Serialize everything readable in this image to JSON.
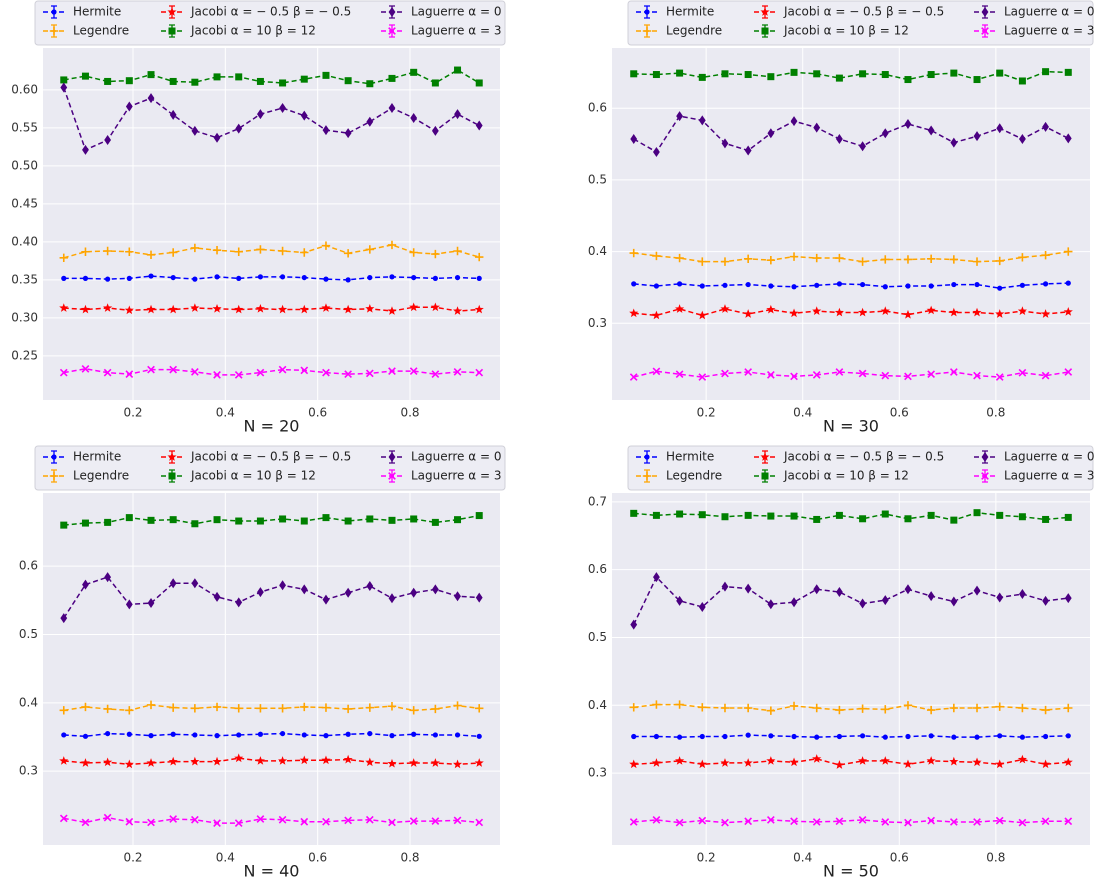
{
  "chart_data": [
    {
      "type": "line",
      "xlabel": "N = 20",
      "grid": true,
      "x": [
        0.05,
        0.097,
        0.145,
        0.192,
        0.239,
        0.287,
        0.334,
        0.382,
        0.429,
        0.476,
        0.524,
        0.571,
        0.618,
        0.666,
        0.713,
        0.761,
        0.808,
        0.855,
        0.903,
        0.95
      ],
      "xlim": [
        0.005,
        0.995
      ],
      "xticks": [
        0.2,
        0.4,
        0.6,
        0.8
      ],
      "ylim": [
        0.192,
        0.655
      ],
      "yticks": [
        0.25,
        {
          "value": 0.3,
          "label": "0.30"
        },
        0.35,
        {
          "value": 0.4,
          "label": "0.40"
        },
        0.45,
        {
          "value": 0.5,
          "label": "0.50"
        },
        0.55,
        {
          "value": 0.6,
          "label": "0.60"
        }
      ],
      "series": [
        {
          "name": "Hermite",
          "color": "#0000ff",
          "marker": "dot",
          "values": [
            0.352,
            0.352,
            0.351,
            0.352,
            0.355,
            0.353,
            0.351,
            0.354,
            0.352,
            0.354,
            0.354,
            0.353,
            0.351,
            0.35,
            0.353,
            0.354,
            0.353,
            0.352,
            0.353,
            0.352
          ]
        },
        {
          "name": "Legendre",
          "color": "#ffa500",
          "marker": "plus",
          "values": [
            0.379,
            0.387,
            0.388,
            0.387,
            0.383,
            0.386,
            0.392,
            0.389,
            0.387,
            0.39,
            0.388,
            0.386,
            0.395,
            0.385,
            0.39,
            0.396,
            0.386,
            0.384,
            0.388,
            0.38
          ]
        },
        {
          "name": "Jacobi α = − 0.5 β = − 0.5",
          "color": "#ff0000",
          "marker": "star",
          "values": [
            0.313,
            0.311,
            0.313,
            0.31,
            0.311,
            0.311,
            0.313,
            0.312,
            0.311,
            0.312,
            0.311,
            0.311,
            0.313,
            0.311,
            0.312,
            0.309,
            0.314,
            0.314,
            0.309,
            0.311
          ]
        },
        {
          "name": "Jacobi α = 10 β = 12",
          "color": "#008000",
          "marker": "square",
          "values": [
            0.613,
            0.618,
            0.611,
            0.612,
            0.62,
            0.611,
            0.61,
            0.617,
            0.617,
            0.611,
            0.609,
            0.614,
            0.619,
            0.612,
            0.608,
            0.615,
            0.623,
            0.609,
            0.626,
            0.609
          ]
        },
        {
          "name": "Laguerre α = 0",
          "color": "#4b0082",
          "marker": "diamond",
          "values": [
            0.603,
            0.521,
            0.534,
            0.578,
            0.589,
            0.567,
            0.546,
            0.537,
            0.549,
            0.568,
            0.576,
            0.566,
            0.547,
            0.543,
            0.558,
            0.576,
            0.563,
            0.546,
            0.568,
            0.553
          ]
        },
        {
          "name": "Laguerre α = 3",
          "color": "#ff00ff",
          "marker": "x",
          "values": [
            0.228,
            0.233,
            0.228,
            0.226,
            0.232,
            0.232,
            0.229,
            0.225,
            0.225,
            0.228,
            0.232,
            0.231,
            0.228,
            0.226,
            0.227,
            0.23,
            0.23,
            0.226,
            0.229,
            0.228
          ]
        }
      ]
    },
    {
      "type": "line",
      "xlabel": "N = 30",
      "grid": true,
      "x": [
        0.05,
        0.097,
        0.145,
        0.192,
        0.239,
        0.287,
        0.334,
        0.382,
        0.429,
        0.476,
        0.524,
        0.571,
        0.618,
        0.666,
        0.713,
        0.761,
        0.808,
        0.855,
        0.903,
        0.95
      ],
      "xlim": [
        0.005,
        0.995
      ],
      "xticks": [
        0.2,
        0.4,
        0.6,
        0.8
      ],
      "ylim": [
        0.193,
        0.684
      ],
      "yticks": [
        0.3,
        0.4,
        0.5,
        0.6
      ],
      "series": [
        {
          "name": "Hermite",
          "color": "#0000ff",
          "marker": "dot",
          "values": [
            0.355,
            0.352,
            0.355,
            0.352,
            0.353,
            0.354,
            0.352,
            0.351,
            0.353,
            0.355,
            0.354,
            0.351,
            0.352,
            0.352,
            0.354,
            0.354,
            0.349,
            0.353,
            0.355,
            0.356
          ]
        },
        {
          "name": "Legendre",
          "color": "#ffa500",
          "marker": "plus",
          "values": [
            0.398,
            0.394,
            0.391,
            0.386,
            0.386,
            0.39,
            0.388,
            0.393,
            0.391,
            0.391,
            0.386,
            0.389,
            0.389,
            0.39,
            0.389,
            0.386,
            0.387,
            0.392,
            0.395,
            0.4
          ]
        },
        {
          "name": "Jacobi α = − 0.5 β = − 0.5",
          "color": "#ff0000",
          "marker": "star",
          "values": [
            0.314,
            0.311,
            0.32,
            0.311,
            0.32,
            0.313,
            0.319,
            0.314,
            0.317,
            0.315,
            0.315,
            0.317,
            0.312,
            0.318,
            0.315,
            0.315,
            0.313,
            0.317,
            0.313,
            0.316
          ]
        },
        {
          "name": "Jacobi α = 10 β = 12",
          "color": "#008000",
          "marker": "square",
          "values": [
            0.648,
            0.647,
            0.649,
            0.643,
            0.648,
            0.647,
            0.644,
            0.65,
            0.648,
            0.642,
            0.648,
            0.647,
            0.64,
            0.647,
            0.649,
            0.64,
            0.649,
            0.638,
            0.651,
            0.65
          ]
        },
        {
          "name": "Laguerre α = 0",
          "color": "#4b0082",
          "marker": "diamond",
          "values": [
            0.557,
            0.539,
            0.589,
            0.583,
            0.551,
            0.541,
            0.565,
            0.582,
            0.573,
            0.557,
            0.547,
            0.565,
            0.578,
            0.569,
            0.552,
            0.561,
            0.572,
            0.557,
            0.574,
            0.558
          ]
        },
        {
          "name": "Laguerre α = 3",
          "color": "#ff00ff",
          "marker": "x",
          "values": [
            0.225,
            0.233,
            0.229,
            0.225,
            0.23,
            0.232,
            0.228,
            0.226,
            0.228,
            0.232,
            0.23,
            0.227,
            0.226,
            0.229,
            0.232,
            0.227,
            0.225,
            0.231,
            0.227,
            0.232
          ]
        }
      ]
    },
    {
      "type": "line",
      "xlabel": "N = 40",
      "grid": true,
      "x": [
        0.05,
        0.097,
        0.145,
        0.192,
        0.239,
        0.287,
        0.334,
        0.382,
        0.429,
        0.476,
        0.524,
        0.571,
        0.618,
        0.666,
        0.713,
        0.761,
        0.808,
        0.855,
        0.903,
        0.95
      ],
      "xlim": [
        0.005,
        0.995
      ],
      "xticks": [
        0.2,
        0.4,
        0.6,
        0.8
      ],
      "ylim": [
        0.192,
        0.707
      ],
      "yticks": [
        0.3,
        0.4,
        0.5,
        0.6
      ],
      "series": [
        {
          "name": "Hermite",
          "color": "#0000ff",
          "marker": "dot",
          "values": [
            0.353,
            0.351,
            0.355,
            0.354,
            0.352,
            0.354,
            0.353,
            0.352,
            0.353,
            0.354,
            0.355,
            0.353,
            0.352,
            0.354,
            0.355,
            0.352,
            0.354,
            0.353,
            0.353,
            0.351
          ]
        },
        {
          "name": "Legendre",
          "color": "#ffa500",
          "marker": "plus",
          "values": [
            0.389,
            0.394,
            0.391,
            0.389,
            0.397,
            0.393,
            0.392,
            0.394,
            0.392,
            0.392,
            0.392,
            0.394,
            0.393,
            0.391,
            0.393,
            0.395,
            0.389,
            0.391,
            0.396,
            0.392
          ]
        },
        {
          "name": "Jacobi α = − 0.5 β = − 0.5",
          "color": "#ff0000",
          "marker": "star",
          "values": [
            0.315,
            0.312,
            0.313,
            0.31,
            0.312,
            0.314,
            0.314,
            0.314,
            0.319,
            0.315,
            0.315,
            0.316,
            0.316,
            0.317,
            0.313,
            0.311,
            0.312,
            0.312,
            0.31,
            0.312
          ]
        },
        {
          "name": "Jacobi α = 10 β = 12",
          "color": "#008000",
          "marker": "square",
          "values": [
            0.66,
            0.663,
            0.664,
            0.671,
            0.667,
            0.668,
            0.662,
            0.668,
            0.666,
            0.666,
            0.669,
            0.666,
            0.671,
            0.666,
            0.669,
            0.667,
            0.669,
            0.664,
            0.668,
            0.674
          ]
        },
        {
          "name": "Laguerre α = 0",
          "color": "#4b0082",
          "marker": "diamond",
          "values": [
            0.524,
            0.573,
            0.584,
            0.544,
            0.546,
            0.575,
            0.575,
            0.555,
            0.547,
            0.562,
            0.572,
            0.566,
            0.551,
            0.561,
            0.571,
            0.553,
            0.561,
            0.566,
            0.556,
            0.554
          ]
        },
        {
          "name": "Laguerre α = 3",
          "color": "#ff00ff",
          "marker": "x",
          "values": [
            0.231,
            0.225,
            0.232,
            0.226,
            0.225,
            0.23,
            0.229,
            0.224,
            0.224,
            0.23,
            0.229,
            0.226,
            0.226,
            0.228,
            0.229,
            0.225,
            0.227,
            0.227,
            0.228,
            0.225
          ]
        }
      ]
    },
    {
      "type": "line",
      "xlabel": "N = 50",
      "grid": true,
      "x": [
        0.05,
        0.097,
        0.145,
        0.192,
        0.239,
        0.287,
        0.334,
        0.382,
        0.429,
        0.476,
        0.524,
        0.571,
        0.618,
        0.666,
        0.713,
        0.761,
        0.808,
        0.855,
        0.903,
        0.95
      ],
      "xlim": [
        0.005,
        0.995
      ],
      "xticks": [
        0.2,
        0.4,
        0.6,
        0.8
      ],
      "ylim": [
        0.194,
        0.713
      ],
      "yticks": [
        0.3,
        0.4,
        0.5,
        0.6,
        0.7
      ],
      "series": [
        {
          "name": "Hermite",
          "color": "#0000ff",
          "marker": "dot",
          "values": [
            0.354,
            0.354,
            0.353,
            0.354,
            0.354,
            0.356,
            0.355,
            0.354,
            0.353,
            0.354,
            0.355,
            0.353,
            0.354,
            0.355,
            0.353,
            0.353,
            0.355,
            0.353,
            0.354,
            0.355
          ]
        },
        {
          "name": "Legendre",
          "color": "#ffa500",
          "marker": "plus",
          "values": [
            0.397,
            0.401,
            0.401,
            0.397,
            0.396,
            0.396,
            0.392,
            0.399,
            0.396,
            0.393,
            0.395,
            0.394,
            0.4,
            0.393,
            0.396,
            0.396,
            0.398,
            0.396,
            0.393,
            0.396
          ]
        },
        {
          "name": "Jacobi α = − 0.5 β = − 0.5",
          "color": "#ff0000",
          "marker": "star",
          "values": [
            0.313,
            0.315,
            0.318,
            0.313,
            0.315,
            0.315,
            0.318,
            0.316,
            0.321,
            0.312,
            0.318,
            0.318,
            0.313,
            0.318,
            0.317,
            0.316,
            0.313,
            0.32,
            0.313,
            0.316
          ]
        },
        {
          "name": "Jacobi α = 10 β = 12",
          "color": "#008000",
          "marker": "square",
          "values": [
            0.683,
            0.68,
            0.682,
            0.681,
            0.678,
            0.68,
            0.679,
            0.679,
            0.674,
            0.68,
            0.675,
            0.682,
            0.675,
            0.68,
            0.673,
            0.684,
            0.68,
            0.678,
            0.674,
            0.677
          ]
        },
        {
          "name": "Laguerre α = 0",
          "color": "#4b0082",
          "marker": "diamond",
          "values": [
            0.519,
            0.589,
            0.554,
            0.545,
            0.575,
            0.572,
            0.549,
            0.552,
            0.571,
            0.567,
            0.55,
            0.555,
            0.571,
            0.561,
            0.553,
            0.569,
            0.559,
            0.564,
            0.554,
            0.558
          ]
        },
        {
          "name": "Laguerre α = 3",
          "color": "#ff00ff",
          "marker": "x",
          "values": [
            0.228,
            0.231,
            0.227,
            0.23,
            0.227,
            0.229,
            0.231,
            0.229,
            0.228,
            0.229,
            0.231,
            0.228,
            0.227,
            0.23,
            0.228,
            0.228,
            0.23,
            0.227,
            0.229,
            0.229
          ]
        }
      ]
    }
  ]
}
